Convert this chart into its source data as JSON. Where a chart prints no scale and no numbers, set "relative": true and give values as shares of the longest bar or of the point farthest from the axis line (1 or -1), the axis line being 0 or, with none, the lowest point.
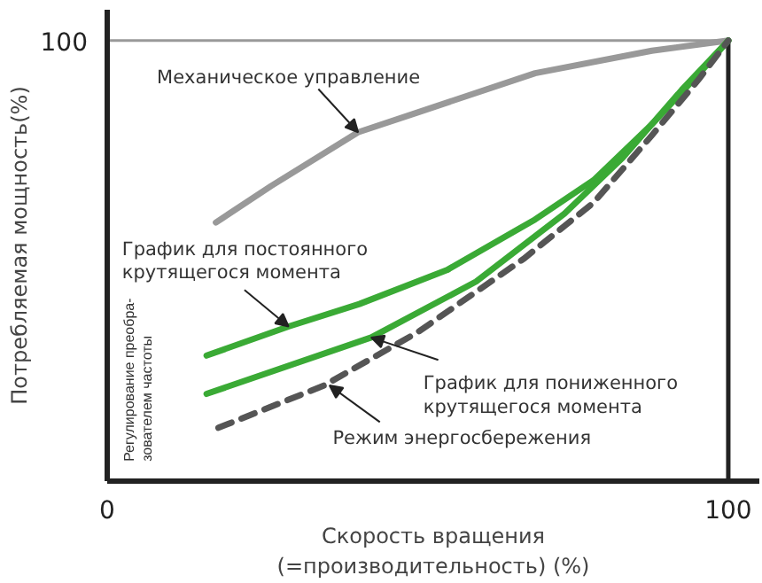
{
  "chart_data": {
    "type": "line",
    "xlabel": "Скорость вращения\n(=производительность) (%)",
    "ylabel": "Потребляемая мощность(%)",
    "relative": true,
    "xlim": [
      0,
      105
    ],
    "xticks": [
      {
        "value": 0,
        "label": "0"
      },
      100
    ],
    "grid": false,
    "ref_lines": [
      {
        "axis": "y",
        "value": 1,
        "label": null,
        "color": "#999999"
      },
      {
        "axis": "x",
        "value": 100,
        "label": null,
        "color": "#222222"
      }
    ],
    "annotations": [
      "100",
      "Регулирование преобра-\nзователем частоты",
      {
        "text": "Механическое управление",
        "x": 40.4,
        "y": 0.792
      },
      {
        "text": "График для постоянного\nкрутящегося момента",
        "x": 29.2,
        "y": 0.351
      },
      {
        "text": "График для пониженного\nкрутящегося момента",
        "x": 42.5,
        "y": 0.326
      },
      {
        "text": "Режим энергосбережения",
        "x": 35.8,
        "y": 0.217
      }
    ],
    "series": [
      {
        "color": "#999999",
        "line_style": "solid",
        "x": [
          17.5,
          26.4,
          40.4,
          50,
          68.9,
          87.7,
          100
        ],
        "values": [
          0.587,
          0.67,
          0.792,
          0.837,
          0.926,
          0.977,
          1
        ]
      },
      {
        "color": "#3aaa35",
        "line_style": "solid",
        "x": [
          16,
          29.2,
          40.6,
          54.7,
          68.9,
          78.3,
          87.7,
          95.3,
          100
        ],
        "values": [
          0.285,
          0.351,
          0.402,
          0.479,
          0.594,
          0.683,
          0.81,
          0.925,
          1
        ]
      },
      {
        "color": "#3aaa35",
        "line_style": "solid",
        "x": [
          16,
          42.5,
          59.4,
          73.6,
          83,
          92.5,
          100
        ],
        "values": [
          0.198,
          0.326,
          0.453,
          0.607,
          0.734,
          0.888,
          1
        ]
      },
      {
        "color": "#555555",
        "line_style": "dashed",
        "x": [
          17.9,
          34.9,
          50,
          67,
          78.3,
          87.7,
          95.3,
          100
        ],
        "values": [
          0.121,
          0.217,
          0.338,
          0.504,
          0.632,
          0.785,
          0.913,
          1
        ]
      }
    ]
  }
}
